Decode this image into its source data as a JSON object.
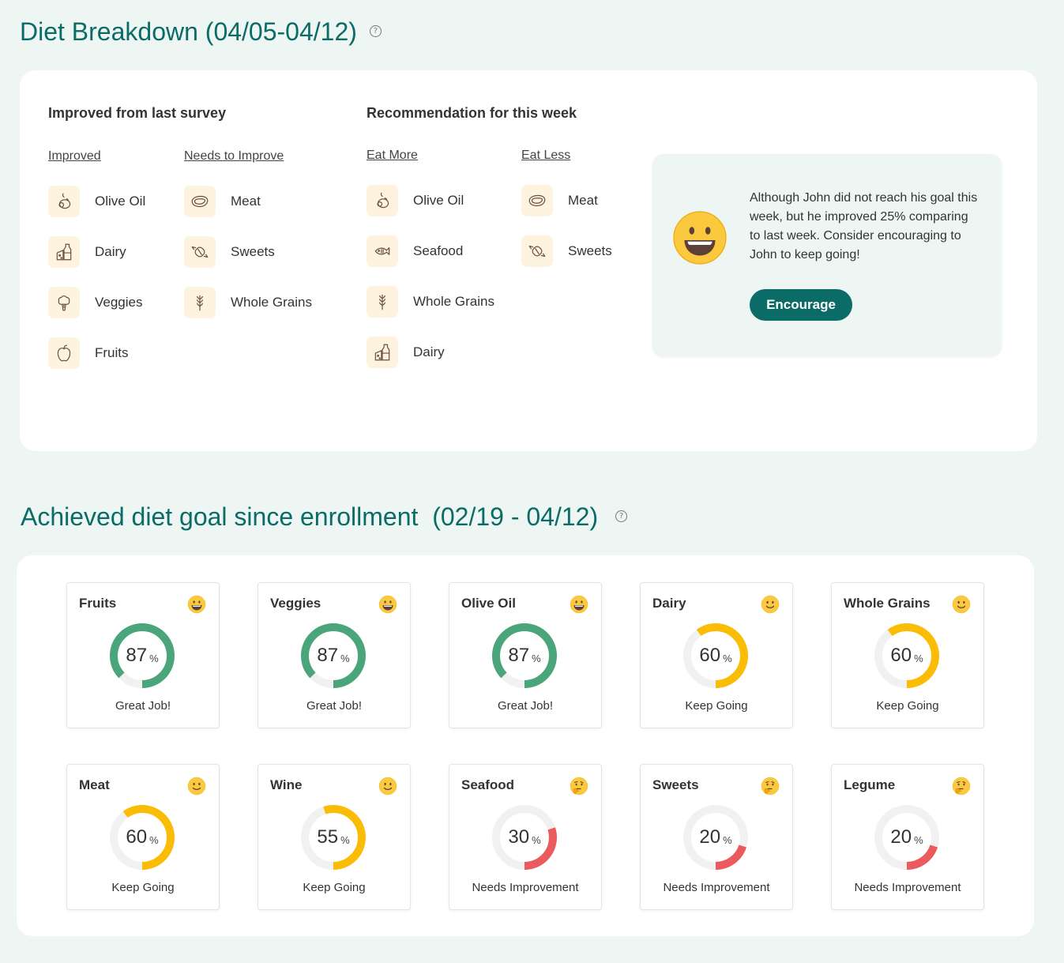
{
  "header": {
    "title": "Diet Breakdown (04/05-04/12)"
  },
  "breakdown": {
    "improved_heading": "Improved from last survey",
    "recommendation_heading": "Recommendation for this week",
    "improved": {
      "label": "Improved",
      "items": [
        {
          "label": "Olive Oil",
          "icon": "olive-oil-icon"
        },
        {
          "label": "Dairy",
          "icon": "dairy-icon"
        },
        {
          "label": "Veggies",
          "icon": "veggies-icon"
        },
        {
          "label": "Fruits",
          "icon": "fruits-icon"
        }
      ]
    },
    "needs_improve": {
      "label": "Needs to Improve",
      "items": [
        {
          "label": "Meat",
          "icon": "meat-icon"
        },
        {
          "label": "Sweets",
          "icon": "sweets-icon"
        },
        {
          "label": "Whole Grains",
          "icon": "whole-grains-icon"
        }
      ]
    },
    "eat_more": {
      "label": "Eat More",
      "items": [
        {
          "label": "Olive Oil",
          "icon": "olive-oil-icon"
        },
        {
          "label": "Seafood",
          "icon": "seafood-icon"
        },
        {
          "label": "Whole Grains",
          "icon": "whole-grains-icon"
        },
        {
          "label": "Dairy",
          "icon": "dairy-icon"
        }
      ]
    },
    "eat_less": {
      "label": "Eat Less",
      "items": [
        {
          "label": "Meat",
          "icon": "meat-icon"
        },
        {
          "label": "Sweets",
          "icon": "sweets-icon"
        }
      ]
    },
    "info": {
      "emoji": "grinning-face-icon",
      "text": "Although John did not reach his goal this week, but he improved 25% comparing to last week. Consider encouraging to John to keep going!",
      "button_label": "Encourage"
    }
  },
  "goals_section": {
    "title": "Achieved diet goal since enrollment  (02/19 - 04/12)",
    "percent_sign": "%",
    "cards": [
      {
        "name": "Fruits",
        "value": "87",
        "percent": 87,
        "status": "Great Job!",
        "emoji": "grinning-face-icon",
        "color": "#4aa57a"
      },
      {
        "name": "Veggies",
        "value": "87",
        "percent": 87,
        "status": "Great Job!",
        "emoji": "grinning-face-icon",
        "color": "#4aa57a"
      },
      {
        "name": "Olive Oil",
        "value": "87",
        "percent": 87,
        "status": "Great Job!",
        "emoji": "grinning-face-icon",
        "color": "#4aa57a"
      },
      {
        "name": "Dairy",
        "value": "60",
        "percent": 60,
        "status": "Keep Going",
        "emoji": "slightly-smiling-face-icon",
        "color": "#fbbc05"
      },
      {
        "name": "Whole Grains",
        "value": "60",
        "percent": 60,
        "status": "Keep Going",
        "emoji": "slightly-smiling-face-icon",
        "color": "#fbbc05"
      },
      {
        "name": "Meat",
        "value": "60",
        "percent": 60,
        "status": "Keep Going",
        "emoji": "slightly-smiling-face-icon",
        "color": "#fbbc05"
      },
      {
        "name": "Wine",
        "value": "55",
        "percent": 55,
        "status": "Keep Going",
        "emoji": "slightly-smiling-face-icon",
        "color": "#fbbc05"
      },
      {
        "name": "Seafood",
        "value": "30",
        "percent": 30,
        "status": "Needs Improvement",
        "emoji": "thinking-face-icon",
        "color": "#eb5a5e"
      },
      {
        "name": "Sweets",
        "value": "20",
        "percent": 20,
        "status": "Needs Improvement",
        "emoji": "thinking-face-icon",
        "color": "#eb5a5e"
      },
      {
        "name": "Legume",
        "value": "20",
        "percent": 20,
        "status": "Needs Improvement",
        "emoji": "thinking-face-icon",
        "color": "#eb5a5e"
      }
    ]
  }
}
